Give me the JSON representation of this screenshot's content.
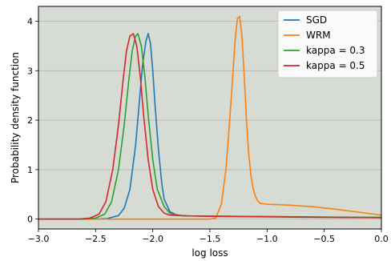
{
  "chart_data": {
    "type": "line",
    "title": "",
    "xlabel": "log loss",
    "ylabel": "Probability density function",
    "xlim": [
      -3.0,
      0.0
    ],
    "ylim": [
      -0.2,
      4.3
    ],
    "xticks": [
      -3.0,
      -2.5,
      -2.0,
      -1.5,
      -1.0,
      -0.5,
      0.0
    ],
    "xtick_labels": [
      "−3.0",
      "−2.5",
      "−2.0",
      "−1.5",
      "−1.0",
      "−0.5",
      "0.0"
    ],
    "yticks": [
      0,
      1,
      2,
      3,
      4
    ],
    "ytick_labels": [
      "0",
      "1",
      "2",
      "3",
      "4"
    ],
    "grid": "horizontal",
    "background": "#d6dbd4",
    "legend_position": "top-right",
    "series": [
      {
        "name": "SGD",
        "color": "#1f77b4",
        "x": [
          -3.0,
          -2.5,
          -2.4,
          -2.3,
          -2.25,
          -2.2,
          -2.15,
          -2.12,
          -2.09,
          -2.06,
          -2.04,
          -2.02,
          -2.0,
          -1.98,
          -1.95,
          -1.92,
          -1.9,
          -1.85,
          -1.8,
          -1.75,
          -1.7,
          -1.5,
          -1.0,
          -0.5,
          0.0
        ],
        "y": [
          0.0,
          0.0,
          0.01,
          0.07,
          0.22,
          0.6,
          1.5,
          2.3,
          3.1,
          3.6,
          3.75,
          3.55,
          3.0,
          2.3,
          1.4,
          0.7,
          0.4,
          0.15,
          0.09,
          0.07,
          0.065,
          0.06,
          0.05,
          0.04,
          0.03
        ]
      },
      {
        "name": "WRM",
        "color": "#ff7f0e",
        "x": [
          -3.0,
          -1.5,
          -1.45,
          -1.4,
          -1.36,
          -1.33,
          -1.3,
          -1.28,
          -1.26,
          -1.24,
          -1.22,
          -1.2,
          -1.18,
          -1.16,
          -1.14,
          -1.12,
          -1.1,
          -1.08,
          -1.06,
          -1.03,
          -1.0,
          -0.8,
          -0.6,
          -0.4,
          -0.2,
          0.0
        ],
        "y": [
          0.0,
          0.0,
          0.02,
          0.3,
          1.0,
          1.9,
          2.9,
          3.6,
          4.05,
          4.1,
          3.7,
          2.9,
          2.0,
          1.3,
          0.85,
          0.6,
          0.45,
          0.36,
          0.32,
          0.31,
          0.3,
          0.28,
          0.25,
          0.2,
          0.14,
          0.08
        ]
      },
      {
        "name": "kappa = 0.3",
        "color": "#2ca02c",
        "x": [
          -3.0,
          -2.6,
          -2.5,
          -2.42,
          -2.36,
          -2.3,
          -2.25,
          -2.21,
          -2.18,
          -2.15,
          -2.13,
          -2.1,
          -2.07,
          -2.04,
          -2.0,
          -1.96,
          -1.9,
          -1.85,
          -1.8,
          -1.7,
          -1.5,
          -1.0,
          -0.5,
          0.0
        ],
        "y": [
          0.0,
          0.0,
          0.02,
          0.1,
          0.35,
          1.0,
          1.9,
          2.8,
          3.4,
          3.7,
          3.75,
          3.5,
          2.9,
          2.1,
          1.2,
          0.6,
          0.25,
          0.12,
          0.08,
          0.065,
          0.06,
          0.05,
          0.04,
          0.035
        ]
      },
      {
        "name": "kappa = 0.5",
        "color": "#d62728",
        "x": [
          -3.0,
          -2.65,
          -2.55,
          -2.47,
          -2.41,
          -2.35,
          -2.3,
          -2.26,
          -2.23,
          -2.2,
          -2.17,
          -2.14,
          -2.11,
          -2.08,
          -2.04,
          -2.0,
          -1.95,
          -1.9,
          -1.85,
          -1.7,
          -1.5,
          -1.0,
          -0.5,
          0.0
        ],
        "y": [
          0.0,
          0.0,
          0.02,
          0.1,
          0.35,
          1.0,
          1.9,
          2.8,
          3.4,
          3.7,
          3.75,
          3.5,
          2.9,
          2.1,
          1.2,
          0.6,
          0.25,
          0.12,
          0.08,
          0.065,
          0.055,
          0.045,
          0.035,
          0.03
        ]
      }
    ]
  }
}
